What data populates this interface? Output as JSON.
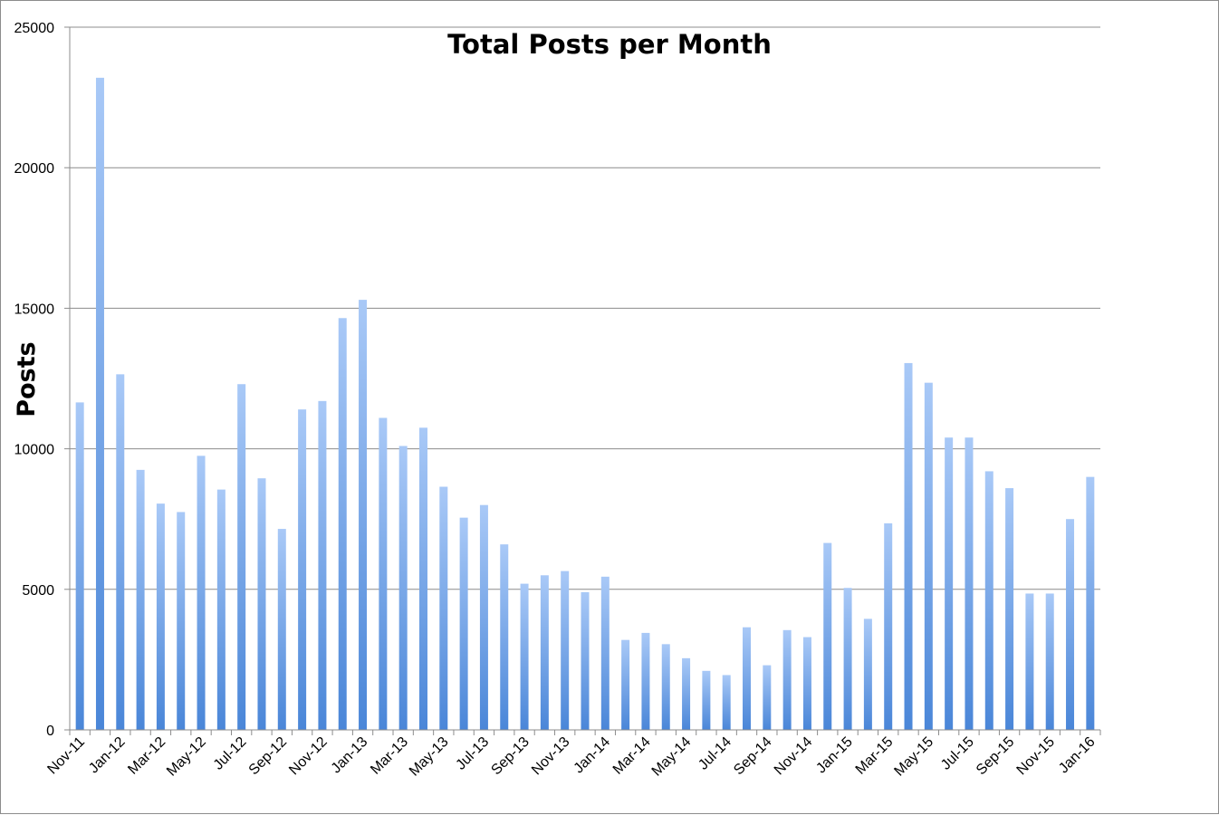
{
  "chart_data": {
    "type": "bar",
    "title": "Total Posts per Month",
    "xlabel": "",
    "ylabel": "Posts",
    "ylim": [
      0,
      25000
    ],
    "yticks": [
      0,
      5000,
      10000,
      15000,
      20000,
      25000
    ],
    "grid": true,
    "bar_color": "#79a8ec",
    "categories": [
      "Nov-11",
      "Dec-11",
      "Jan-12",
      "Feb-12",
      "Mar-12",
      "Apr-12",
      "May-12",
      "Jun-12",
      "Jul-12",
      "Aug-12",
      "Sep-12",
      "Oct-12",
      "Nov-12",
      "Dec-12",
      "Jan-13",
      "Feb-13",
      "Mar-13",
      "Apr-13",
      "May-13",
      "Jun-13",
      "Jul-13",
      "Aug-13",
      "Sep-13",
      "Oct-13",
      "Nov-13",
      "Dec-13",
      "Jan-14",
      "Feb-14",
      "Mar-14",
      "Apr-14",
      "May-14",
      "Jun-14",
      "Jul-14",
      "Aug-14",
      "Sep-14",
      "Oct-14",
      "Nov-14",
      "Dec-14",
      "Jan-15",
      "Feb-15",
      "Mar-15",
      "Apr-15",
      "May-15",
      "Jun-15",
      "Jul-15",
      "Aug-15",
      "Sep-15",
      "Oct-15",
      "Nov-15",
      "Dec-15",
      "Jan-16"
    ],
    "labeled_categories": [
      "Nov-11",
      "Jan-12",
      "Mar-12",
      "May-12",
      "Jul-12",
      "Sep-12",
      "Nov-12",
      "Jan-13",
      "Mar-13",
      "May-13",
      "Jul-13",
      "Sep-13",
      "Nov-13",
      "Jan-14",
      "Mar-14",
      "May-14",
      "Jul-14",
      "Sep-14",
      "Nov-14",
      "Jan-15",
      "Mar-15",
      "May-15",
      "Jul-15",
      "Sep-15",
      "Nov-15",
      "Jan-16"
    ],
    "values": [
      11650,
      23200,
      12650,
      9250,
      8050,
      7750,
      9750,
      8550,
      12300,
      8950,
      7150,
      11400,
      11700,
      14650,
      15300,
      11100,
      10100,
      10750,
      8650,
      7550,
      8000,
      6600,
      5200,
      5500,
      5650,
      4900,
      5450,
      3200,
      3450,
      3050,
      2550,
      2100,
      1950,
      3650,
      2300,
      3550,
      3300,
      6650,
      5050,
      3950,
      7350,
      13050,
      12350,
      10400,
      10400,
      9200,
      8600,
      4850,
      4850,
      7500,
      9000
    ]
  }
}
